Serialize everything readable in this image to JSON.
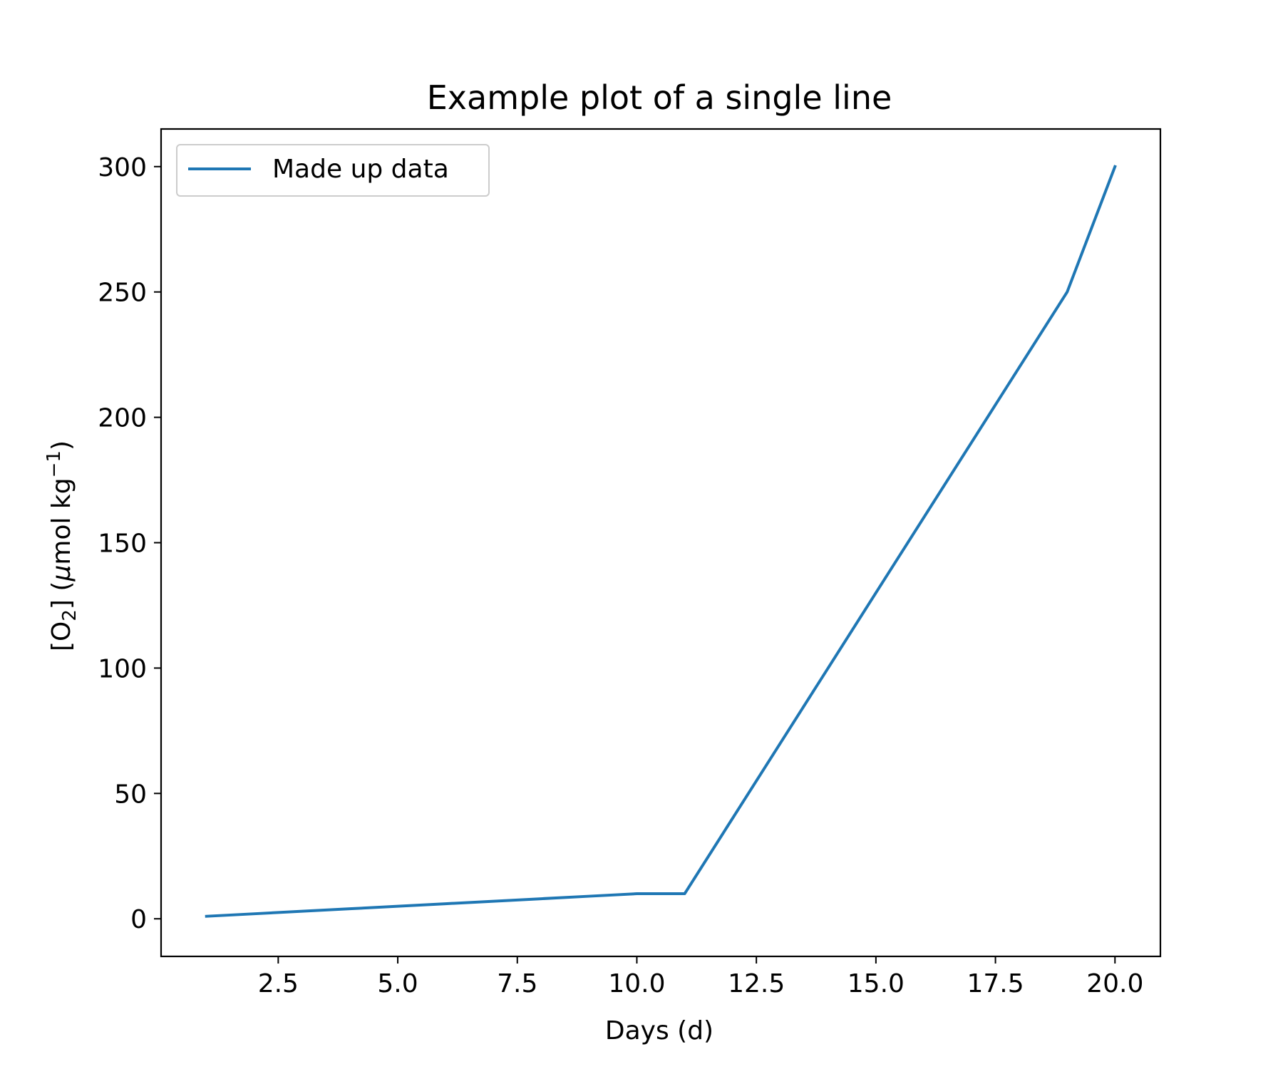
{
  "chart_data": {
    "type": "line",
    "title": "Example plot of a single line",
    "xlabel": "Days (d)",
    "ylabel": {
      "prefix": "[O",
      "sub": "2",
      "middle": "] (",
      "italic": "μ",
      "after_italic": "mol kg",
      "sup": "−1",
      "suffix": ")"
    },
    "xlim": [
      0.05,
      20.95
    ],
    "ylim": [
      -15,
      315
    ],
    "x_ticks": [
      2.5,
      5.0,
      7.5,
      10.0,
      12.5,
      15.0,
      17.5,
      20.0
    ],
    "x_tick_labels": [
      "2.5",
      "5.0",
      "7.5",
      "10.0",
      "12.5",
      "15.0",
      "17.5",
      "20.0"
    ],
    "y_ticks": [
      0,
      50,
      100,
      150,
      200,
      250,
      300
    ],
    "y_tick_labels": [
      "0",
      "50",
      "100",
      "150",
      "200",
      "250",
      "300"
    ],
    "grid": false,
    "legend_position": "upper-left",
    "series": [
      {
        "name": "Made up data",
        "color": "#1f77b4",
        "x": [
          1,
          2,
          3,
          4,
          5,
          6,
          7,
          8,
          9,
          10,
          11,
          12,
          13,
          14,
          15,
          16,
          17,
          18,
          19,
          20
        ],
        "y": [
          1,
          2,
          3,
          4,
          5,
          6,
          7,
          8,
          9,
          10,
          10,
          40,
          70,
          100,
          130,
          160,
          190,
          220,
          250,
          300
        ]
      }
    ]
  }
}
